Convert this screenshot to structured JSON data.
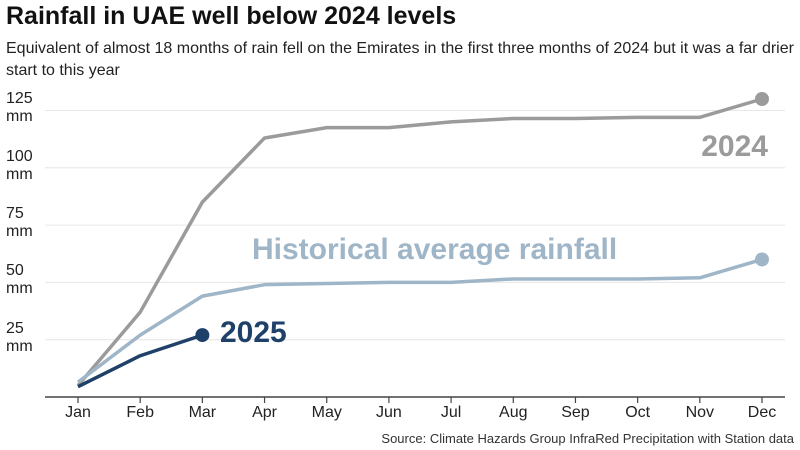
{
  "chart_data": {
    "type": "line",
    "title": "Rainfall in UAE well below 2024 levels",
    "subtitle": "Equivalent of almost 18 months of rain fell on the Emirates in the first three months of 2024 but it was a far drier start to this year",
    "source": "Source: Climate Hazards Group InfraRed Precipitation with Station data",
    "categories": [
      "Jan",
      "Feb",
      "Mar",
      "Apr",
      "May",
      "Jun",
      "Jul",
      "Aug",
      "Sep",
      "Oct",
      "Nov",
      "Dec"
    ],
    "series": [
      {
        "name": "2024",
        "color": "#9b9b9b",
        "values": [
          5,
          37,
          85,
          113,
          117.5,
          117.5,
          120,
          121.5,
          121.5,
          122,
          122,
          130
        ]
      },
      {
        "name": "Historical average rainfall",
        "color": "#9fb5c8",
        "values": [
          6.5,
          27,
          44,
          49,
          49.5,
          50,
          50,
          51.5,
          51.5,
          51.5,
          52,
          60
        ]
      },
      {
        "name": "2025",
        "color": "#1f4068",
        "values": [
          4.5,
          18,
          27,
          null,
          null,
          null,
          null,
          null,
          null,
          null,
          null,
          null
        ]
      }
    ],
    "ylim": [
      0,
      130
    ],
    "yticks": [
      {
        "value": 25,
        "label": "25 mm"
      },
      {
        "value": 50,
        "label": "50 mm"
      },
      {
        "value": 75,
        "label": "75 mm"
      },
      {
        "value": 100,
        "label": "100 mm"
      },
      {
        "value": 125,
        "label": "125 mm"
      }
    ],
    "grid": true
  }
}
